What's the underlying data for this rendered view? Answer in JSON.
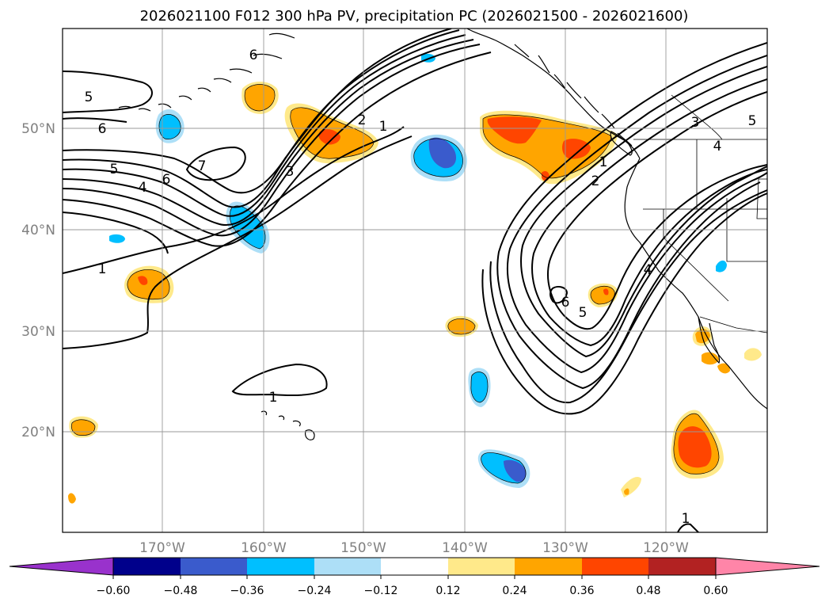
{
  "title": "2026021100 F012 300 hPa PV, precipitation PC (2026021500 - 2026021600)",
  "lat_labels": [
    "50°N",
    "40°N",
    "30°N",
    "20°N"
  ],
  "lon_labels": [
    "170°W",
    "160°W",
    "150°W",
    "140°W",
    "130°W",
    "120°W"
  ],
  "colorbar": {
    "colors": [
      "#9932CC",
      "#00008B",
      "#3A5BCC",
      "#00BFFF",
      "#ADDFF7",
      "#FFFFFF",
      "#FFE98A",
      "#FFA500",
      "#FF4500",
      "#B22222",
      "#FF85A8"
    ],
    "ticks": [
      "−0.60",
      "−0.48",
      "−0.36",
      "−0.24",
      "−0.12",
      "0.12",
      "0.24",
      "0.36",
      "0.48",
      "0.60"
    ]
  },
  "contour_labels": [
    {
      "id": "c1",
      "text": "6"
    },
    {
      "id": "c2",
      "text": "5"
    },
    {
      "id": "c3",
      "text": "6"
    },
    {
      "id": "c4",
      "text": "5"
    },
    {
      "id": "c5",
      "text": "4"
    },
    {
      "id": "c6",
      "text": "6"
    },
    {
      "id": "c7",
      "text": "7"
    },
    {
      "id": "c8",
      "text": "3"
    },
    {
      "id": "c9",
      "text": "2"
    },
    {
      "id": "c10",
      "text": "1"
    },
    {
      "id": "c11",
      "text": "1"
    },
    {
      "id": "c12",
      "text": "1"
    },
    {
      "id": "c13",
      "text": "1"
    },
    {
      "id": "c14",
      "text": "2"
    },
    {
      "id": "c15",
      "text": "6"
    },
    {
      "id": "c16",
      "text": "5"
    },
    {
      "id": "c17",
      "text": "4"
    },
    {
      "id": "c18",
      "text": "3"
    },
    {
      "id": "c19",
      "text": "4"
    },
    {
      "id": "c20",
      "text": "5"
    },
    {
      "id": "c21",
      "text": "1"
    }
  ]
}
